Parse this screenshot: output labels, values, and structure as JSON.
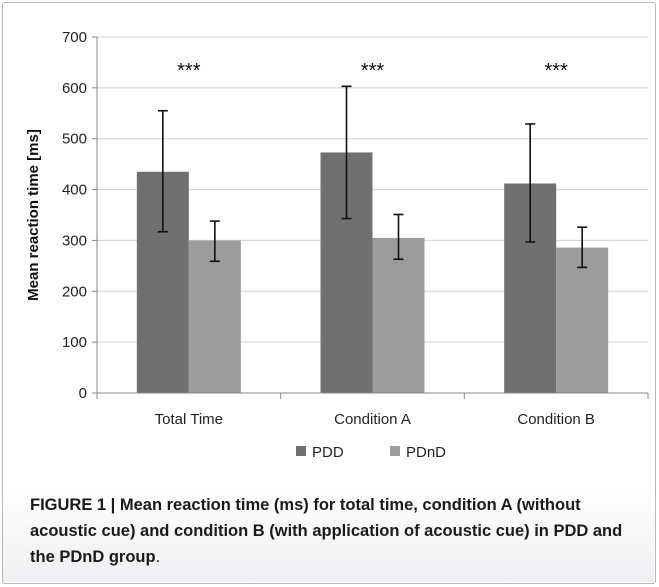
{
  "chart_data": {
    "type": "bar",
    "categories": [
      "Total Time",
      "Condition A",
      "Condition B"
    ],
    "series": [
      {
        "name": "PDD",
        "values": [
          435,
          473,
          412
        ],
        "error": [
          [
            317,
            555
          ],
          [
            343,
            603
          ],
          [
            297,
            529
          ]
        ]
      },
      {
        "name": "PDnD",
        "values": [
          300,
          305,
          286
        ],
        "error": [
          [
            259,
            338
          ],
          [
            263,
            351
          ],
          [
            247,
            326
          ]
        ]
      }
    ],
    "ylabel": "Mean reaction time [ms]",
    "xlabel": "",
    "ylim": [
      0,
      700
    ],
    "yticks": [
      0,
      100,
      200,
      300,
      400,
      500,
      600,
      700
    ],
    "annotations": [
      "***",
      "***",
      "***"
    ],
    "grid": true,
    "legend_position": "bottom"
  },
  "caption": {
    "bold": "FIGURE 1 | Mean reaction time (ms) for total time, condition A (without acoustic cue) and condition B (with application of acoustic cue) in PDD and the PDnD group",
    "tail": "."
  },
  "colors": {
    "PDD": "#707070",
    "PDnD": "#9c9c9c",
    "grid": "#d0d0d0",
    "axis": "#888888"
  }
}
